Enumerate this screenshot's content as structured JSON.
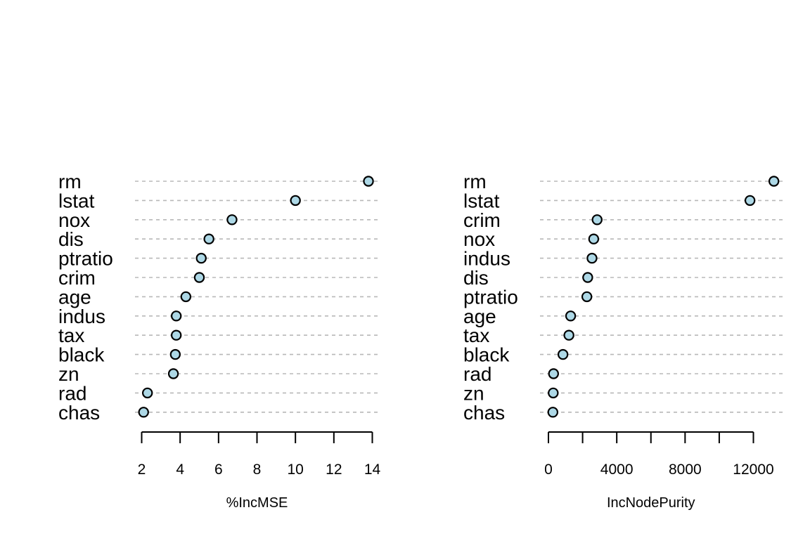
{
  "chart_data": [
    {
      "type": "scatter",
      "style": "dotchart",
      "title": "",
      "xlabel": "%IncMSE",
      "ylabel": "",
      "xlim": [
        2,
        14
      ],
      "xticks": [
        2,
        4,
        6,
        8,
        10,
        12,
        14
      ],
      "tick_labels": [
        "2",
        "4",
        "6",
        "8",
        "10",
        "12",
        "14"
      ],
      "grid": false,
      "categories": [
        "rm",
        "lstat",
        "nox",
        "dis",
        "ptratio",
        "crim",
        "age",
        "indus",
        "tax",
        "black",
        "zn",
        "rad",
        "chas"
      ],
      "values": [
        13.8,
        10.0,
        6.7,
        5.5,
        5.1,
        5.0,
        4.3,
        3.8,
        3.8,
        3.75,
        3.65,
        2.3,
        2.1
      ],
      "point_color": "#add8e6"
    },
    {
      "type": "scatter",
      "style": "dotchart",
      "title": "",
      "xlabel": "IncNodePurity",
      "ylabel": "",
      "xlim": [
        0,
        12000
      ],
      "xticks": [
        0,
        2000,
        4000,
        6000,
        8000,
        10000,
        12000
      ],
      "tick_labels": [
        "0",
        "",
        "4000",
        "",
        "8000",
        "",
        "12000"
      ],
      "grid": false,
      "categories": [
        "rm",
        "lstat",
        "crim",
        "nox",
        "indus",
        "dis",
        "ptratio",
        "age",
        "tax",
        "black",
        "rad",
        "zn",
        "chas"
      ],
      "values": [
        13200,
        11800,
        2850,
        2650,
        2550,
        2300,
        2250,
        1300,
        1200,
        850,
        300,
        280,
        260
      ],
      "point_color": "#add8e6"
    }
  ]
}
